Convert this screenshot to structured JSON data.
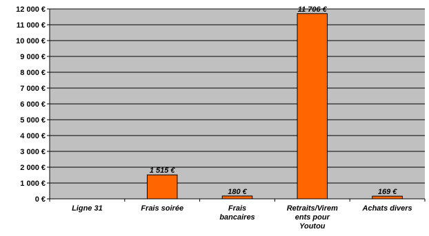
{
  "chart_data": {
    "type": "bar",
    "categories": [
      [
        "Ligne 31"
      ],
      [
        "Frais soirée"
      ],
      [
        "Frais",
        "bancaires"
      ],
      [
        "Retraits/Virem",
        "ents pour",
        "Youtou"
      ],
      [
        "Achats divers"
      ]
    ],
    "values": [
      0,
      1515,
      180,
      11706,
      169
    ],
    "data_labels": [
      "",
      "1 515 €",
      "180 €",
      "11 706 €",
      "169 €"
    ],
    "y_ticks": [
      0,
      1000,
      2000,
      3000,
      4000,
      5000,
      6000,
      7000,
      8000,
      9000,
      10000,
      11000,
      12000
    ],
    "y_tick_labels": [
      "0 €",
      "1 000 €",
      "2 000 €",
      "3 000 €",
      "4 000 €",
      "5 000 €",
      "6 000 €",
      "7 000 €",
      "8 000 €",
      "9 000 €",
      "10 000 €",
      "11 000 €",
      "12 000 €"
    ],
    "ylim": [
      0,
      12000
    ],
    "grid": true,
    "legend": "none",
    "colors": {
      "bar": "#ff6600",
      "bar_edge": "#000000",
      "plot_background": "#c0c0c0",
      "grid": "#000000"
    }
  }
}
